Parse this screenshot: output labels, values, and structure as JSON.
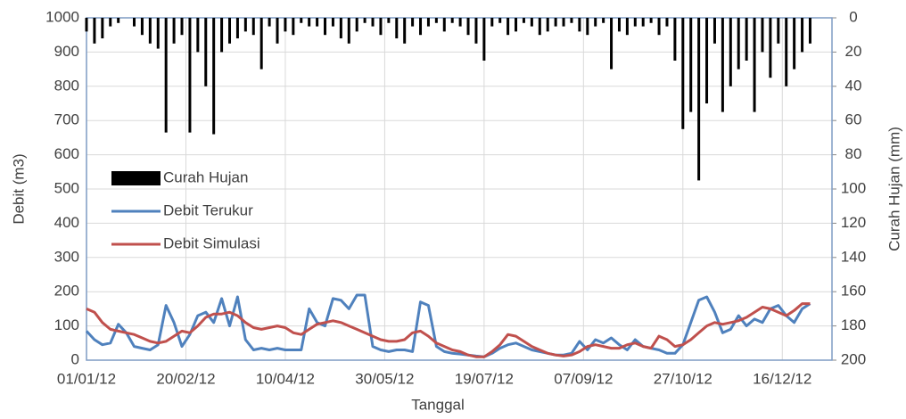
{
  "chart_data": {
    "type": "combo",
    "x_label": "Tanggal",
    "y_label": "Debit (m3)",
    "y2_label": "Curah Hujan (mm)",
    "x": [
      0,
      4,
      8,
      12,
      16,
      20,
      24,
      28,
      32,
      36,
      40,
      44,
      48,
      52,
      56,
      60,
      64,
      68,
      72,
      76,
      80,
      84,
      88,
      92,
      96,
      100,
      104,
      108,
      112,
      116,
      120,
      124,
      128,
      132,
      136,
      140,
      144,
      148,
      152,
      156,
      160,
      164,
      168,
      172,
      176,
      180,
      184,
      188,
      192,
      196,
      200,
      204,
      208,
      212,
      216,
      220,
      224,
      228,
      232,
      236,
      240,
      244,
      248,
      252,
      256,
      260,
      264,
      268,
      272,
      276,
      280,
      284,
      288,
      292,
      296,
      300,
      304,
      308,
      312,
      316,
      320,
      324,
      328,
      332,
      336,
      340,
      344,
      348,
      352,
      356,
      360,
      364
    ],
    "xlim": [
      0,
      375
    ],
    "xticks": [
      {
        "value": 0,
        "label": "01/01/12"
      },
      {
        "value": 50,
        "label": "20/02/12"
      },
      {
        "value": 100,
        "label": "10/04/12"
      },
      {
        "value": 150,
        "label": "30/05/12"
      },
      {
        "value": 200,
        "label": "19/07/12"
      },
      {
        "value": 250,
        "label": "07/09/12"
      },
      {
        "value": 300,
        "label": "27/10/12"
      },
      {
        "value": 350,
        "label": "16/12/12"
      }
    ],
    "ylim": [
      0,
      1000
    ],
    "yticks": [
      0,
      100,
      200,
      300,
      400,
      500,
      600,
      700,
      800,
      900,
      1000
    ],
    "y2lim": [
      200,
      0
    ],
    "y2ticks": [
      0,
      20,
      40,
      60,
      80,
      100,
      120,
      140,
      160,
      180,
      200
    ],
    "grid": true,
    "legend": "left",
    "series": [
      {
        "name": "Curah Hujan",
        "type": "bar",
        "axis": "y2",
        "color": "#000000",
        "values": [
          8,
          15,
          12,
          5,
          3,
          0,
          5,
          10,
          15,
          18,
          67,
          15,
          10,
          67,
          20,
          40,
          68,
          20,
          15,
          12,
          8,
          10,
          30,
          5,
          15,
          8,
          10,
          3,
          5,
          5,
          10,
          5,
          12,
          15,
          8,
          3,
          5,
          10,
          3,
          12,
          15,
          5,
          10,
          5,
          3,
          8,
          3,
          5,
          10,
          15,
          25,
          5,
          3,
          10,
          8,
          3,
          5,
          10,
          8,
          5,
          5,
          3,
          8,
          10,
          5,
          3,
          30,
          8,
          10,
          5,
          5,
          3,
          10,
          5,
          25,
          65,
          55,
          95,
          50,
          15,
          55,
          40,
          30,
          25,
          55,
          20,
          35,
          15,
          40,
          30,
          20,
          15
        ]
      },
      {
        "name": "Debit Terukur",
        "type": "line",
        "color": "#4f81bd",
        "values": [
          85,
          60,
          45,
          50,
          105,
          80,
          40,
          35,
          30,
          45,
          160,
          110,
          40,
          75,
          130,
          140,
          110,
          180,
          100,
          185,
          60,
          30,
          35,
          30,
          35,
          30,
          30,
          30,
          150,
          110,
          100,
          180,
          175,
          150,
          190,
          190,
          40,
          30,
          25,
          30,
          30,
          25,
          170,
          160,
          40,
          25,
          20,
          18,
          15,
          12,
          10,
          20,
          35,
          45,
          50,
          40,
          30,
          25,
          20,
          15,
          15,
          20,
          55,
          30,
          60,
          50,
          65,
          45,
          30,
          60,
          40,
          35,
          30,
          20,
          20,
          45,
          110,
          175,
          185,
          140,
          80,
          90,
          130,
          100,
          120,
          110,
          150,
          160,
          130,
          110,
          150,
          165
        ]
      },
      {
        "name": "Debit Simulasi",
        "type": "line",
        "color": "#c0504d",
        "values": [
          150,
          140,
          110,
          90,
          85,
          80,
          75,
          65,
          55,
          50,
          55,
          70,
          85,
          80,
          100,
          125,
          135,
          135,
          140,
          130,
          110,
          95,
          90,
          95,
          100,
          95,
          80,
          75,
          90,
          105,
          110,
          115,
          110,
          100,
          90,
          80,
          70,
          60,
          55,
          55,
          60,
          80,
          85,
          70,
          50,
          40,
          30,
          25,
          15,
          10,
          10,
          25,
          45,
          75,
          70,
          55,
          40,
          30,
          20,
          15,
          12,
          15,
          25,
          40,
          45,
          40,
          35,
          35,
          45,
          50,
          40,
          35,
          70,
          60,
          40,
          45,
          60,
          80,
          100,
          110,
          105,
          110,
          115,
          125,
          140,
          155,
          150,
          140,
          130,
          145,
          165,
          165
        ]
      }
    ]
  }
}
